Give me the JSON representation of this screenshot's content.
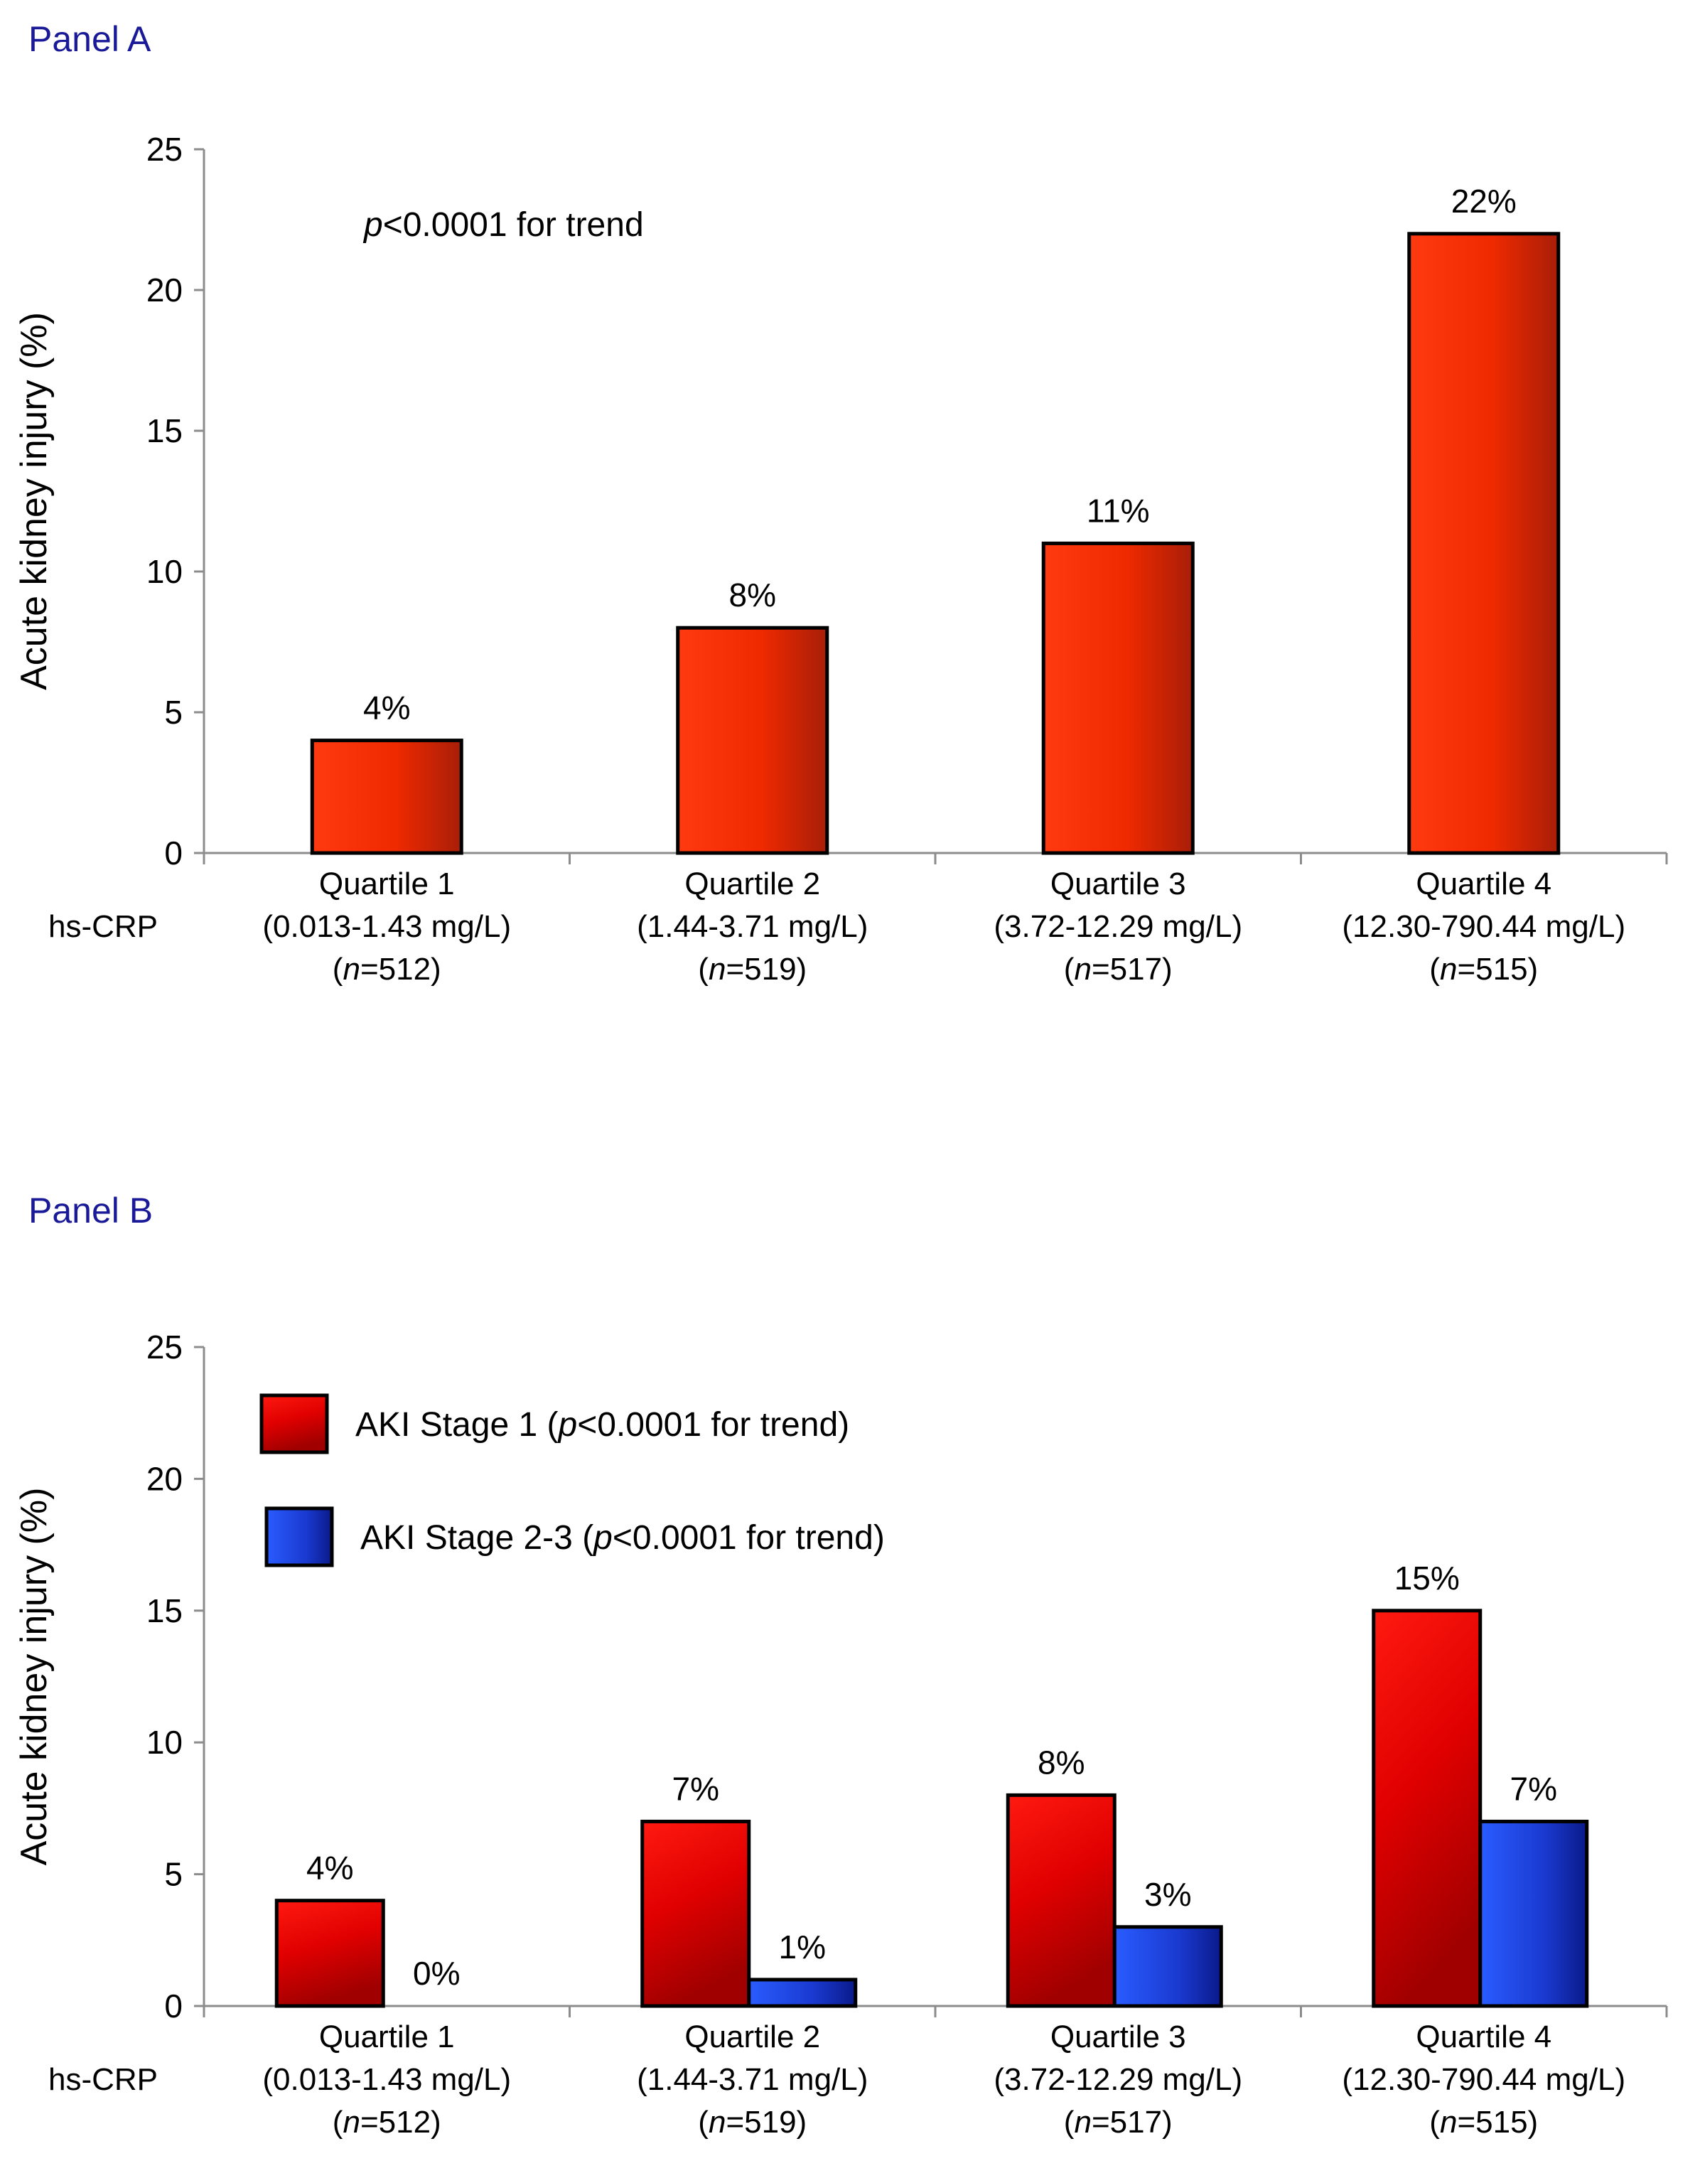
{
  "chart_data": [
    {
      "type": "bar",
      "panel_label": "Panel A",
      "ylabel": "Acute kidney injury  (%)",
      "ylim": [
        0,
        25
      ],
      "yticks": [
        0,
        5,
        10,
        15,
        20,
        25
      ],
      "annotation": {
        "italic": "p",
        "rest": "<0.0001 for trend"
      },
      "row_label": "hs-CRP",
      "categories": [
        {
          "name": "Quartile 1",
          "range": "(0.013-1.43 mg/L)",
          "n_pre": "(",
          "n_italic": "n",
          "n_post": "=512)"
        },
        {
          "name": "Quartile 2",
          "range": "(1.44-3.71 mg/L)",
          "n_pre": "(",
          "n_italic": "n",
          "n_post": "=519)"
        },
        {
          "name": "Quartile 3",
          "range": "(3.72-12.29 mg/L)",
          "n_pre": "(",
          "n_italic": "n",
          "n_post": "=517)"
        },
        {
          "name": "Quartile 4",
          "range": "(12.30-790.44 mg/L)",
          "n_pre": "(",
          "n_italic": "n",
          "n_post": "=515)"
        }
      ],
      "series": [
        {
          "name": "AKI",
          "color": "#ff2a00",
          "values": [
            4,
            8,
            11,
            22
          ],
          "labels": [
            "4%",
            "8%",
            "11%",
            "22%"
          ]
        }
      ]
    },
    {
      "type": "bar",
      "panel_label": "Panel B",
      "ylabel": "Acute kidney injury  (%)",
      "ylim": [
        0,
        25
      ],
      "yticks": [
        0,
        5,
        10,
        15,
        20,
        25
      ],
      "row_label": "hs-CRP",
      "categories": [
        {
          "name": "Quartile 1",
          "range": "(0.013-1.43 mg/L)",
          "n_pre": "(",
          "n_italic": "n",
          "n_post": "=512)"
        },
        {
          "name": "Quartile 2",
          "range": "(1.44-3.71 mg/L)",
          "n_pre": "(",
          "n_italic": "n",
          "n_post": "=519)"
        },
        {
          "name": "Quartile 3",
          "range": "(3.72-12.29 mg/L)",
          "n_pre": "(",
          "n_italic": "n",
          "n_post": "=517)"
        },
        {
          "name": "Quartile 4",
          "range": "(12.30-790.44 mg/L)",
          "n_pre": "(",
          "n_italic": "n",
          "n_post": "=515)"
        }
      ],
      "series": [
        {
          "name": "AKI Stage 1",
          "legend_pre": "AKI Stage 1 (",
          "legend_italic": "p",
          "legend_post": "<0.0001 for trend)",
          "color": "#ff0000",
          "values": [
            4,
            7,
            8,
            15
          ],
          "labels": [
            "4%",
            "7%",
            "8%",
            "15%"
          ]
        },
        {
          "name": "AKI Stage 2-3",
          "legend_pre": "AKI Stage 2-3 (",
          "legend_italic": "p",
          "legend_post": "<0.0001 for trend)",
          "color": "#1a3fd9",
          "values": [
            0,
            1,
            3,
            7
          ],
          "labels": [
            "0%",
            "1%",
            "3%",
            "7%"
          ]
        }
      ]
    }
  ]
}
